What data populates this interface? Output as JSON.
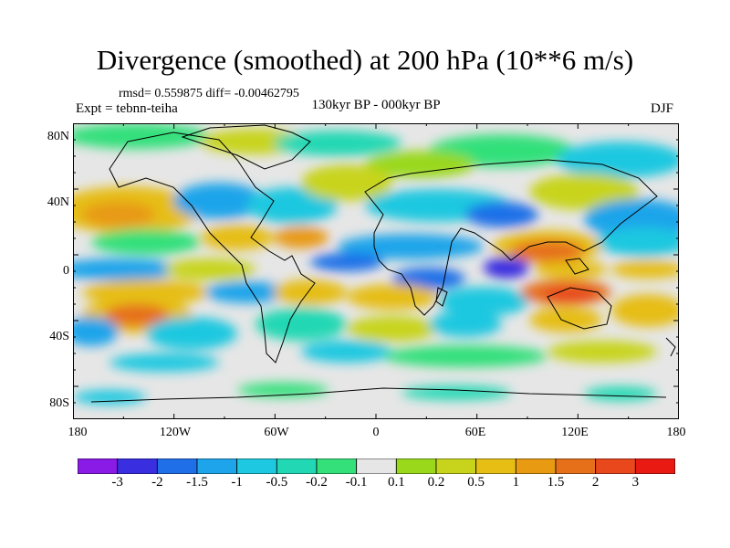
{
  "title": "Divergence (smoothed) at 200 hPa (10**6 m/s)",
  "stats": "rmsd= 0.559875 diff= -0.00462795",
  "experiment": "Expt = tebnn-teiha",
  "period": "130kyr BP - 000kyr BP",
  "season": "DJF",
  "lat_labels": [
    "80N",
    "40N",
    "0",
    "40S",
    "80S"
  ],
  "lon_labels": [
    "180",
    "120W",
    "60W",
    "0",
    "60E",
    "120E",
    "180"
  ],
  "colorbar": {
    "colors": [
      "#8a1ae6",
      "#3a2fe0",
      "#1f6fe8",
      "#1ea4ea",
      "#1ec8e0",
      "#22d8b4",
      "#33e07a",
      "#e6e6e6",
      "#9ad81c",
      "#c8d41c",
      "#e6be14",
      "#e89a12",
      "#e6701a",
      "#e8481c",
      "#e81a12"
    ],
    "labels": [
      "-3",
      "-2",
      "-1.5",
      "-1",
      "-0.5",
      "-0.2",
      "-0.1",
      "0.1",
      "0.2",
      "0.5",
      "1",
      "1.5",
      "2",
      "3"
    ]
  }
}
